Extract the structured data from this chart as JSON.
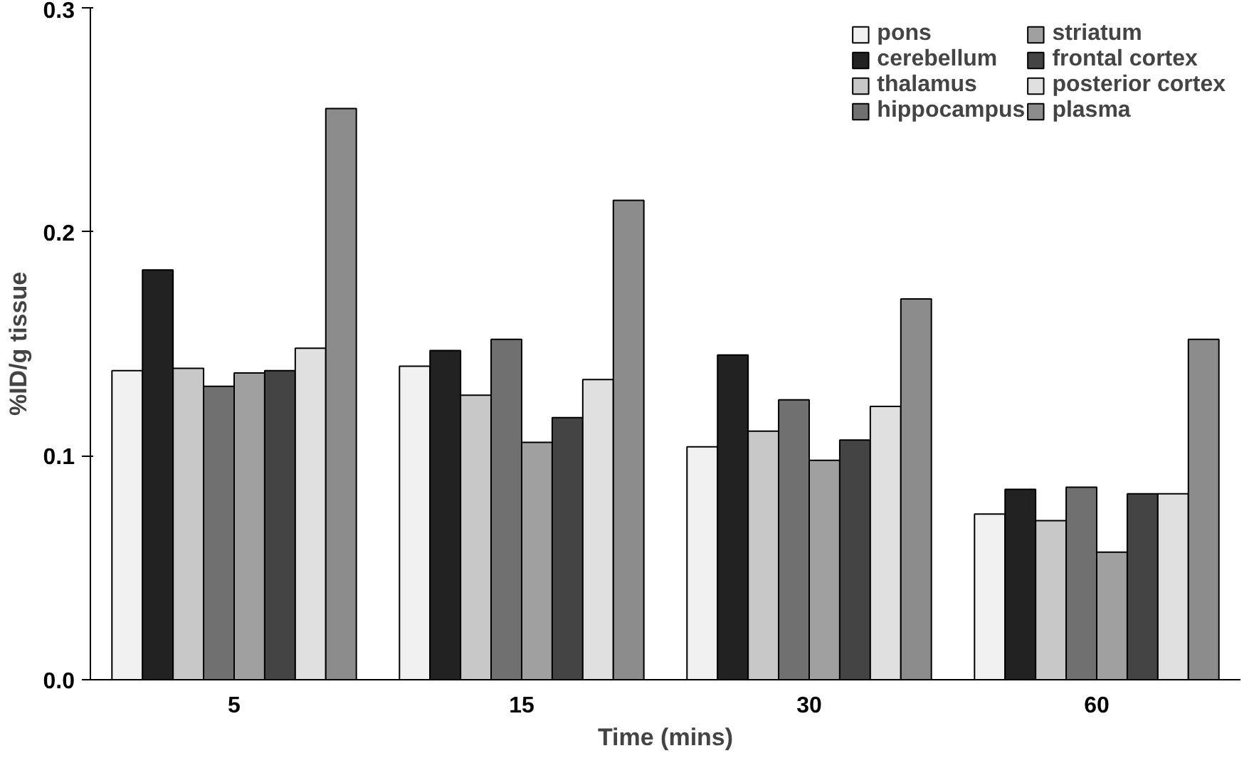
{
  "chart_data": {
    "type": "bar",
    "xlabel": "Time (mins)",
    "ylabel": "%ID/g tissue",
    "categories": [
      "5",
      "15",
      "30",
      "60"
    ],
    "ylim": [
      0,
      0.3
    ],
    "yticks": [
      {
        "value": 0,
        "label": "0.0"
      },
      0.1,
      0.2,
      0.3
    ],
    "grid": false,
    "legend": "top right",
    "series": [
      {
        "name": "pons",
        "color": "#f0f0f0",
        "values": [
          0.138,
          0.14,
          0.104,
          0.074
        ]
      },
      {
        "name": "cerebellum",
        "color": "#222222",
        "values": [
          0.183,
          0.147,
          0.145,
          0.085
        ]
      },
      {
        "name": "thalamus",
        "color": "#c8c8c8",
        "values": [
          0.139,
          0.127,
          0.111,
          0.071
        ]
      },
      {
        "name": "hippocampus",
        "color": "#707070",
        "values": [
          0.131,
          0.152,
          0.125,
          0.086
        ]
      },
      {
        "name": "striatum",
        "color": "#a0a0a0",
        "values": [
          0.137,
          0.106,
          0.098,
          0.057
        ]
      },
      {
        "name": "frontal cortex",
        "color": "#444444",
        "values": [
          0.138,
          0.117,
          0.107,
          0.083
        ]
      },
      {
        "name": "posterior cortex",
        "color": "#e0e0e0",
        "values": [
          0.148,
          0.134,
          0.122,
          0.083
        ]
      },
      {
        "name": "plasma",
        "color": "#8c8c8c",
        "values": [
          0.255,
          0.214,
          0.17,
          0.152
        ]
      }
    ]
  }
}
